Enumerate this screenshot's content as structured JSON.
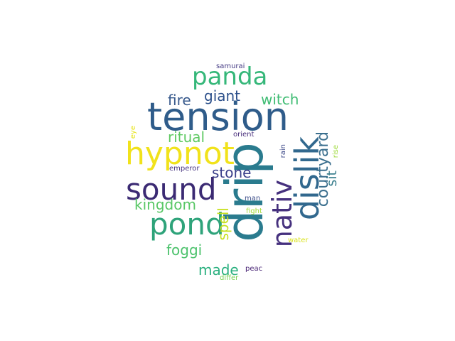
{
  "word_cloud": {
    "words": [
      {
        "text": "drip",
        "color": "#2a7b8e"
      },
      {
        "text": "tension",
        "color": "#2f5c8a"
      },
      {
        "text": "hypnot",
        "color": "#f1e21b"
      },
      {
        "text": "panda",
        "color": "#35b779"
      },
      {
        "text": "sound",
        "color": "#3b2a73"
      },
      {
        "text": "pond",
        "color": "#2ea37a"
      },
      {
        "text": "dislik",
        "color": "#31688e"
      },
      {
        "text": "nativ",
        "color": "#46317e"
      },
      {
        "text": "courtyard",
        "color": "#3b6f8e"
      },
      {
        "text": "giant",
        "color": "#2b4f8a"
      },
      {
        "text": "witch",
        "color": "#3fbc73"
      },
      {
        "text": "fire",
        "color": "#37598c"
      },
      {
        "text": "ritual",
        "color": "#5ec962"
      },
      {
        "text": "stone",
        "color": "#3a3f8a"
      },
      {
        "text": "kingdom",
        "color": "#58c765"
      },
      {
        "text": "sit",
        "color": "#3b7f8e"
      },
      {
        "text": "spell",
        "color": "#c8e020"
      },
      {
        "text": "foggi",
        "color": "#4cc26c"
      },
      {
        "text": "made",
        "color": "#2ab07f"
      },
      {
        "text": "samurai",
        "color": "#443a83"
      },
      {
        "text": "eye",
        "color": "#e7e419"
      },
      {
        "text": "emperor",
        "color": "#46337f"
      },
      {
        "text": "orient",
        "color": "#472d7b"
      },
      {
        "text": "rain",
        "color": "#3e4a89"
      },
      {
        "text": "rise",
        "color": "#9dd93b"
      },
      {
        "text": "man",
        "color": "#3d4e8a"
      },
      {
        "text": "fight",
        "color": "#a2da37"
      },
      {
        "text": "water",
        "color": "#d8e219"
      },
      {
        "text": "peac",
        "color": "#482475"
      },
      {
        "text": "differ",
        "color": "#7ad151"
      }
    ]
  }
}
